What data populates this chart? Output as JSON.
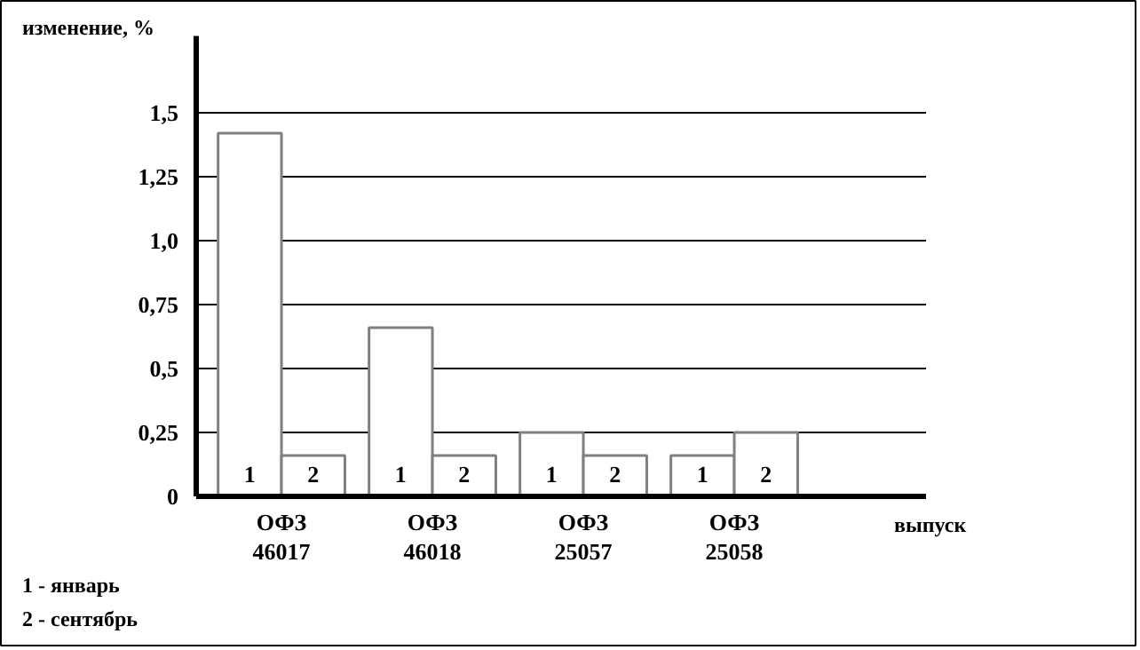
{
  "chart_data": {
    "type": "bar",
    "ylabel": "изменение, %",
    "xlabel": "выпуск",
    "categories": [
      "ОФЗ 46017",
      "ОФЗ 46018",
      "ОФЗ 25057",
      "ОФЗ 25058"
    ],
    "series": [
      {
        "name": "1",
        "color": "#ffffff",
        "values": [
          1.42,
          0.66,
          0.25,
          0.16
        ]
      },
      {
        "name": "2",
        "color": "#ffffff",
        "values": [
          0.16,
          0.16,
          0.16,
          0.25
        ]
      }
    ],
    "ylim": [
      0,
      1.8
    ],
    "yticks": [
      0,
      {
        "value": 0.25,
        "label": "0,25"
      },
      {
        "value": 0.5,
        "label": "0,5"
      },
      {
        "value": 0.75,
        "label": "0,75"
      },
      {
        "value": 1.0,
        "label": "1,0"
      },
      {
        "value": 1.25,
        "label": "1,25"
      },
      {
        "value": 1.5,
        "label": "1,5"
      }
    ],
    "grid": "y",
    "annotations": [
      "1 - январь",
      "2 - сентябрь"
    ]
  }
}
